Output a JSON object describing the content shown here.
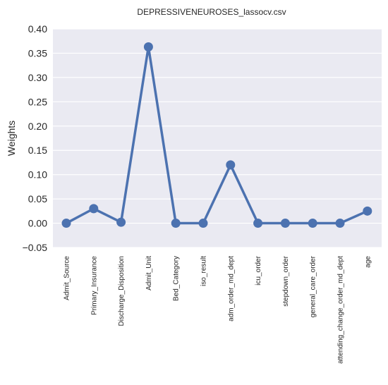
{
  "chart_data": {
    "type": "line",
    "title": "DEPRESSIVENEUROSES_lassocv.csv",
    "xlabel": "",
    "ylabel": "Weights",
    "ylim": [
      -0.05,
      0.4
    ],
    "yticks": [
      "−0.05",
      "0.00",
      "0.05",
      "0.10",
      "0.15",
      "0.20",
      "0.25",
      "0.30",
      "0.35",
      "0.40"
    ],
    "ytick_values": [
      -0.05,
      0.0,
      0.05,
      0.1,
      0.15,
      0.2,
      0.25,
      0.3,
      0.35,
      0.4
    ],
    "grid": true,
    "categories": [
      "Admit_Source",
      "Primary_Insurance",
      "Discharge_Disposition",
      "Admit_Unit",
      "Bed_Category",
      "iso_result",
      "adm_order_md_dept",
      "icu_order",
      "stepdown_order",
      "general_care_order",
      "attending_change_order_md_dept",
      "age"
    ],
    "series": [
      {
        "values": [
          0.0,
          0.03,
          0.002,
          0.363,
          0.0,
          0.0,
          0.12,
          0.0,
          0.0,
          0.0,
          0.0,
          0.025
        ]
      }
    ],
    "colors": {
      "background": "#eaeaf2",
      "grid": "#ffffff",
      "line": "#4c72b0"
    }
  }
}
